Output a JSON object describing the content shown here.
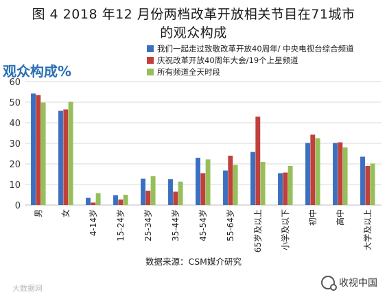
{
  "title_line1": "图 4 2018 年12 月份两档改革开放相关节目在71城市",
  "title_line2": "的观众构成",
  "chart_label": "观众构成%",
  "source": "数据来源：CSM媒介研究",
  "watermark_left": "大数据网",
  "watermark_right": "收视中国",
  "chart_data": {
    "type": "bar",
    "ylim": [
      0,
      60
    ],
    "yticks": [
      0,
      10,
      20,
      30,
      40,
      50,
      60
    ],
    "grid": true,
    "legend_position": "top-right",
    "categories": [
      "男",
      "女",
      "4-14岁",
      "15-24岁",
      "25-34岁",
      "35-44岁",
      "45-54岁",
      "55-64岁",
      "65岁及以上",
      "小学及以下",
      "初中",
      "高中",
      "大学及以上"
    ],
    "series": [
      {
        "name": "我们一起走过致敬改革开放40周年/ 中央电视台综合频道",
        "color": "#3b6fc0",
        "values": [
          54.2,
          45.8,
          3.5,
          4.8,
          12.8,
          12.6,
          23.0,
          16.8,
          25.8,
          15.5,
          30.2,
          30.2,
          23.5
        ]
      },
      {
        "name": "庆祝改革开放40周年大会/19个上星频道",
        "color": "#c0403c",
        "values": [
          53.5,
          46.5,
          1.2,
          2.7,
          7.0,
          6.5,
          15.5,
          24.0,
          43.0,
          15.8,
          34.2,
          30.5,
          19.0
        ]
      },
      {
        "name": "所有频道全天时段",
        "color": "#96bf5a",
        "values": [
          49.8,
          50.2,
          5.8,
          5.0,
          14.0,
          11.4,
          22.2,
          19.5,
          21.0,
          19.0,
          32.5,
          28.0,
          20.2
        ]
      }
    ]
  }
}
